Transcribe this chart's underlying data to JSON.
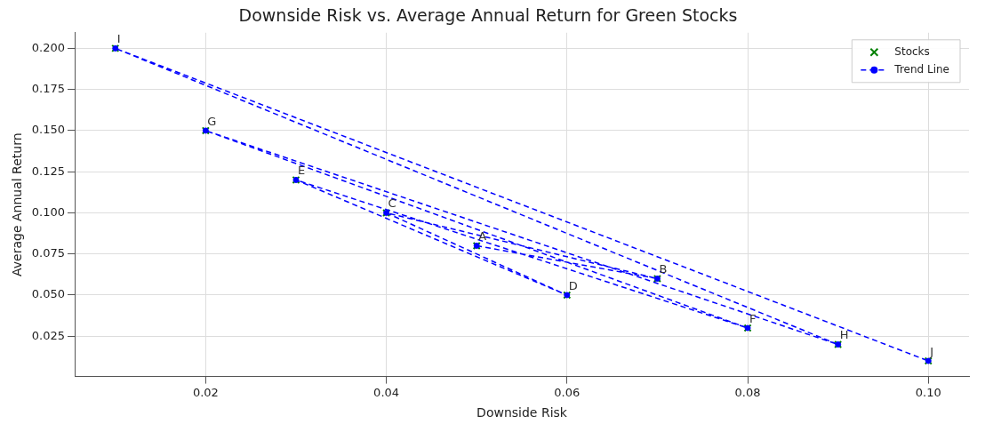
{
  "chart_data": {
    "type": "scatter",
    "title": "Downside Risk vs. Average Annual Return for Green Stocks",
    "xlabel": "Downside Risk",
    "ylabel": "Average Annual Return",
    "x": [
      0.05,
      0.07,
      0.04,
      0.06,
      0.03,
      0.08,
      0.02,
      0.09,
      0.01,
      0.1
    ],
    "series": [
      {
        "name": "Stocks",
        "type": "scatter",
        "color": "#008000",
        "marker": "cross",
        "values": [
          0.08,
          0.06,
          0.1,
          0.05,
          0.12,
          0.03,
          0.15,
          0.02,
          0.2,
          0.01
        ]
      },
      {
        "name": "Trend Line",
        "type": "line",
        "color": "#0000ff",
        "marker": "circle",
        "line_style": "dashed",
        "values": [
          0.08,
          0.06,
          0.1,
          0.05,
          0.12,
          0.03,
          0.15,
          0.02,
          0.2,
          0.01
        ]
      }
    ],
    "annotations": [
      {
        "text": "A",
        "x": 0.05,
        "y": 0.08
      },
      {
        "text": "B",
        "x": 0.07,
        "y": 0.06
      },
      {
        "text": "C",
        "x": 0.04,
        "y": 0.1
      },
      {
        "text": "D",
        "x": 0.06,
        "y": 0.05
      },
      {
        "text": "E",
        "x": 0.03,
        "y": 0.12
      },
      {
        "text": "F",
        "x": 0.08,
        "y": 0.03
      },
      {
        "text": "G",
        "x": 0.02,
        "y": 0.15
      },
      {
        "text": "H",
        "x": 0.09,
        "y": 0.02
      },
      {
        "text": "I",
        "x": 0.01,
        "y": 0.2
      },
      {
        "text": "J",
        "x": 0.1,
        "y": 0.01
      }
    ],
    "xlim": [
      0.0055,
      0.1045
    ],
    "ylim": [
      0.0005,
      0.2095
    ],
    "xticks": [
      {
        "value": 0.02,
        "label": "0.02"
      },
      {
        "value": 0.04,
        "label": "0.04"
      },
      {
        "value": 0.06,
        "label": "0.06"
      },
      {
        "value": 0.08,
        "label": "0.08"
      },
      {
        "value": 0.1,
        "label": "0.10"
      }
    ],
    "yticks": [
      {
        "value": 0.025,
        "label": "0.025"
      },
      {
        "value": 0.05,
        "label": "0.050"
      },
      {
        "value": 0.075,
        "label": "0.075"
      },
      {
        "value": 0.1,
        "label": "0.100"
      },
      {
        "value": 0.125,
        "label": "0.125"
      },
      {
        "value": 0.15,
        "label": "0.150"
      },
      {
        "value": 0.175,
        "label": "0.175"
      },
      {
        "value": 0.2,
        "label": "0.200"
      }
    ],
    "grid": true,
    "legend": "top right"
  }
}
